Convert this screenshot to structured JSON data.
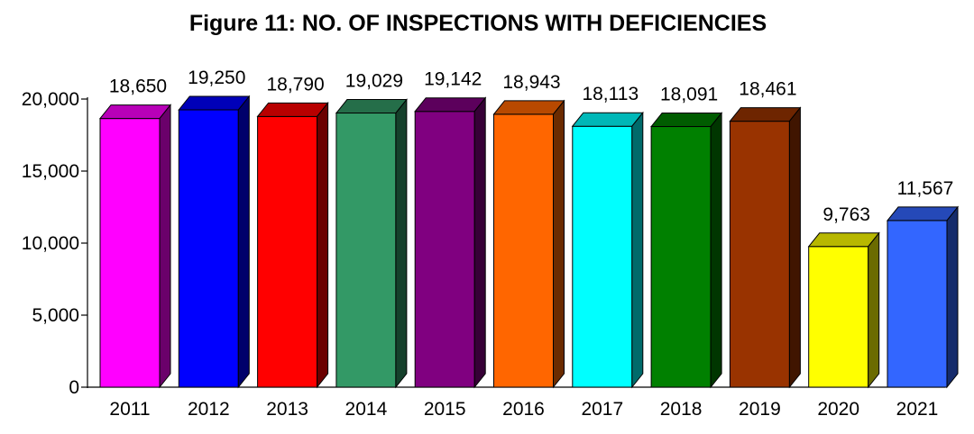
{
  "chart_data": {
    "type": "bar",
    "title": "Figure 11: NO. OF INSPECTIONS WITH DEFICIENCIES",
    "xlabel": "",
    "ylabel": "",
    "ylim": [
      0,
      20000
    ],
    "yticks": [
      0,
      5000,
      10000,
      15000,
      20000
    ],
    "ytick_labels": [
      "0",
      "5,000",
      "10,000",
      "15,000",
      "20,000"
    ],
    "categories": [
      "2011",
      "2012",
      "2013",
      "2014",
      "2015",
      "2016",
      "2017",
      "2018",
      "2019",
      "2020",
      "2021"
    ],
    "values": [
      18650,
      19250,
      18790,
      19029,
      19142,
      18943,
      18113,
      18091,
      18461,
      9763,
      11567
    ],
    "value_labels": [
      "18,650",
      "19,250",
      "18,790",
      "19,029",
      "19,142",
      "18,943",
      "18,113",
      "18,091",
      "18,461",
      "9,763",
      "11,567"
    ],
    "colors": [
      "#ff00ff",
      "#0000ff",
      "#ff0000",
      "#339966",
      "#800080",
      "#ff6600",
      "#00ffff",
      "#008000",
      "#993300",
      "#ffff00",
      "#3366ff"
    ],
    "bar_style": "3d",
    "grid": false,
    "legend": "none"
  }
}
